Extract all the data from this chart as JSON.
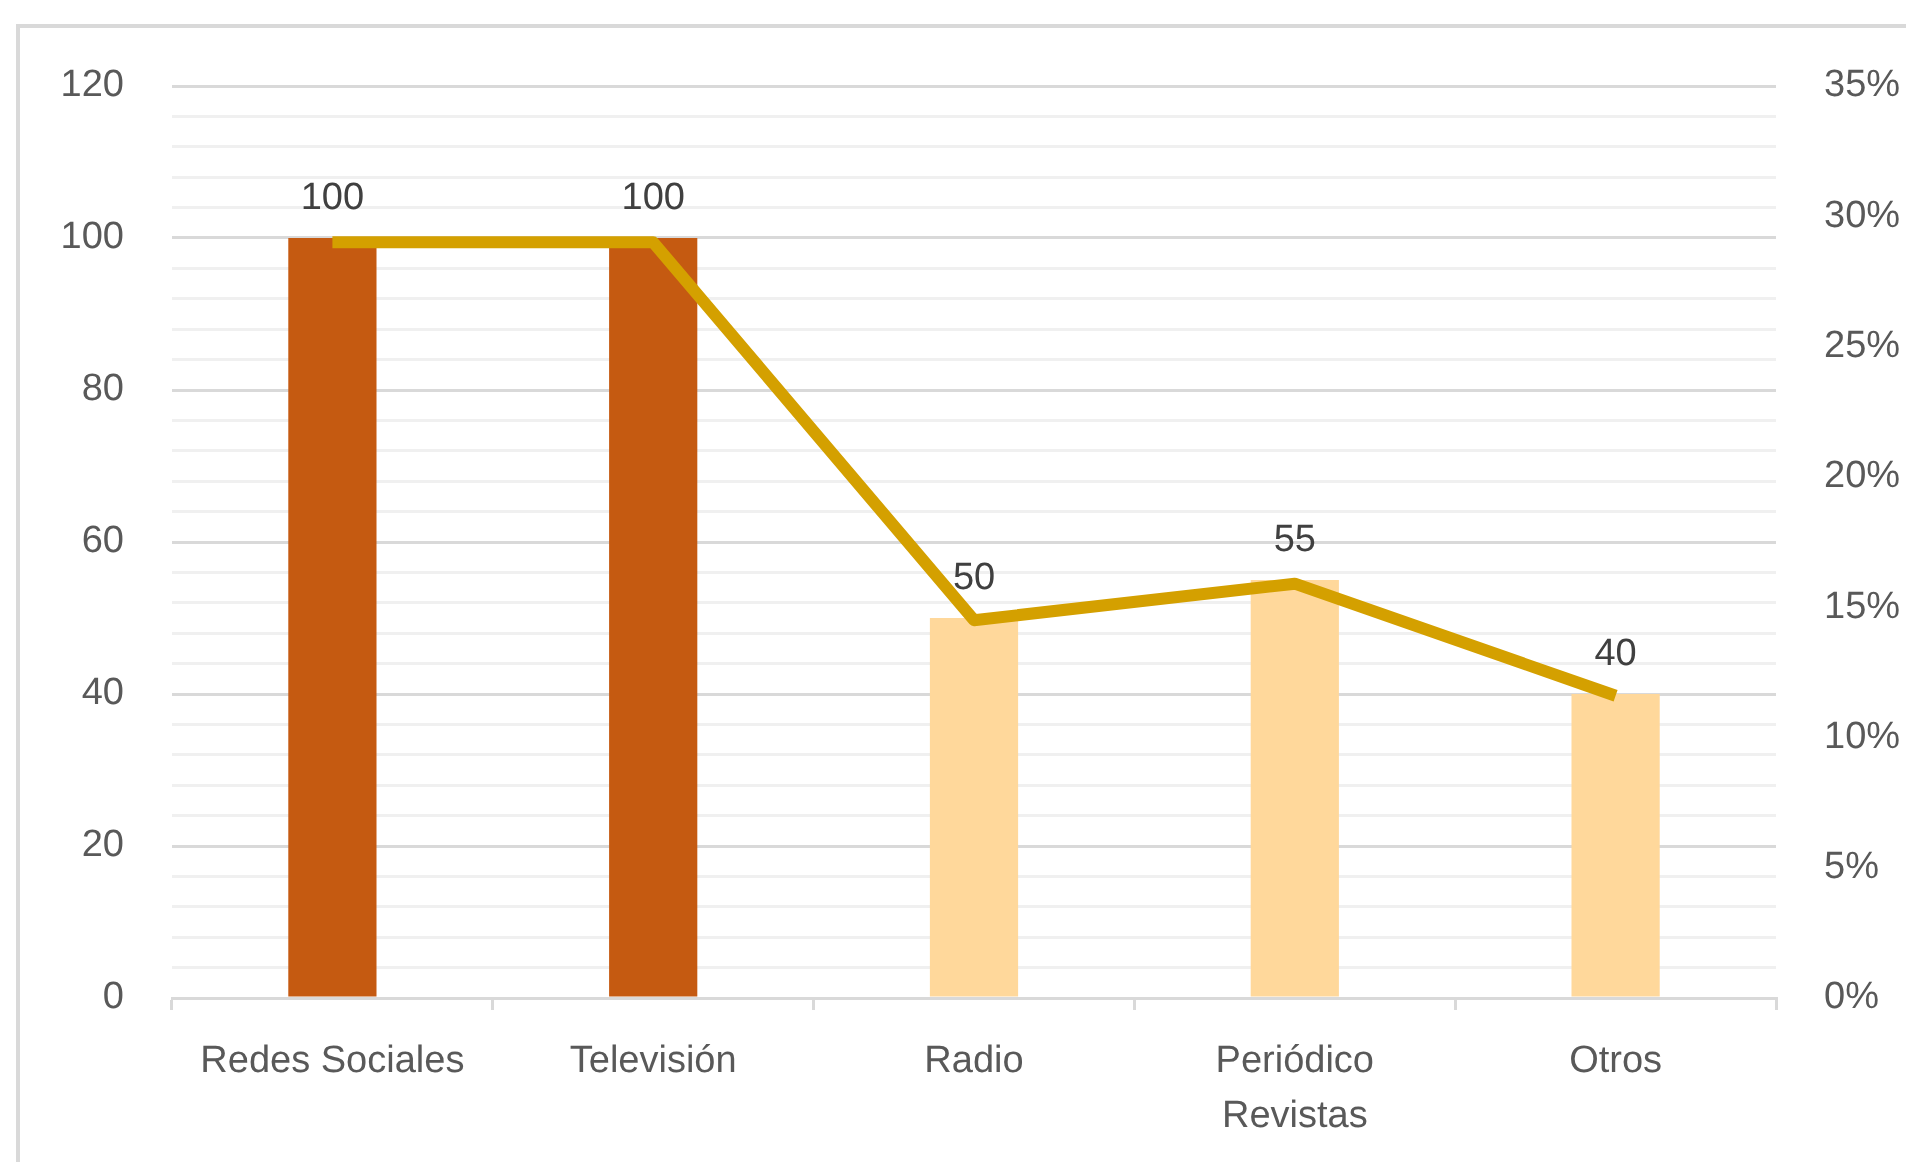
{
  "chart_data": {
    "type": "bar",
    "categories": [
      "Redes Sociales",
      "Televisión",
      "Radio",
      "Periódico Revistas",
      "Otros"
    ],
    "series": [
      {
        "colors": [
          "#c55a11",
          "#c55a11",
          "#ffd89b",
          "#ffd89b",
          "#ffd89b"
        ],
        "values": [
          100,
          100,
          50,
          55,
          40
        ],
        "value_labels": [
          "100",
          "100",
          "50",
          "55",
          "40"
        ]
      },
      {
        "type": "line",
        "axis": "y2",
        "color": "#d4a000",
        "values": [
          29.0,
          29.0,
          14.5,
          15.9,
          11.6
        ]
      }
    ],
    "ylim": [
      0,
      120
    ],
    "yticks": [
      0,
      {
        "value": 4,
        "label": null
      },
      {
        "value": 8,
        "label": null
      },
      {
        "value": 12,
        "label": null
      },
      {
        "value": 16,
        "label": null
      },
      20,
      {
        "value": 24,
        "label": null
      },
      {
        "value": 28,
        "label": null
      },
      {
        "value": 32,
        "label": null
      },
      {
        "value": 36,
        "label": null
      },
      40,
      {
        "value": 44,
        "label": null
      },
      {
        "value": 48,
        "label": null
      },
      {
        "value": 52,
        "label": null
      },
      {
        "value": 56,
        "label": null
      },
      60,
      {
        "value": 64,
        "label": null
      },
      {
        "value": 68,
        "label": null
      },
      {
        "value": 72,
        "label": null
      },
      {
        "value": 76,
        "label": null
      },
      80,
      {
        "value": 84,
        "label": null
      },
      {
        "value": 88,
        "label": null
      },
      {
        "value": 92,
        "label": null
      },
      {
        "value": 96,
        "label": null
      },
      100,
      {
        "value": 104,
        "label": null
      },
      {
        "value": 108,
        "label": null
      },
      {
        "value": 112,
        "label": null
      },
      {
        "value": 116,
        "label": null
      },
      120
    ],
    "y2lim": [
      0,
      35
    ],
    "y2ticks": [
      {
        "value": 0,
        "label": "0%"
      },
      {
        "value": 5,
        "label": "5%"
      },
      {
        "value": 10,
        "label": "10%"
      },
      {
        "value": 15,
        "label": "15%"
      },
      {
        "value": 20,
        "label": "20%"
      },
      {
        "value": 25,
        "label": "25%"
      },
      {
        "value": 30,
        "label": "30%"
      },
      {
        "value": 35,
        "label": "35%"
      }
    ],
    "grid": "y",
    "legend": false,
    "marker": "none",
    "line_style": "solid"
  }
}
